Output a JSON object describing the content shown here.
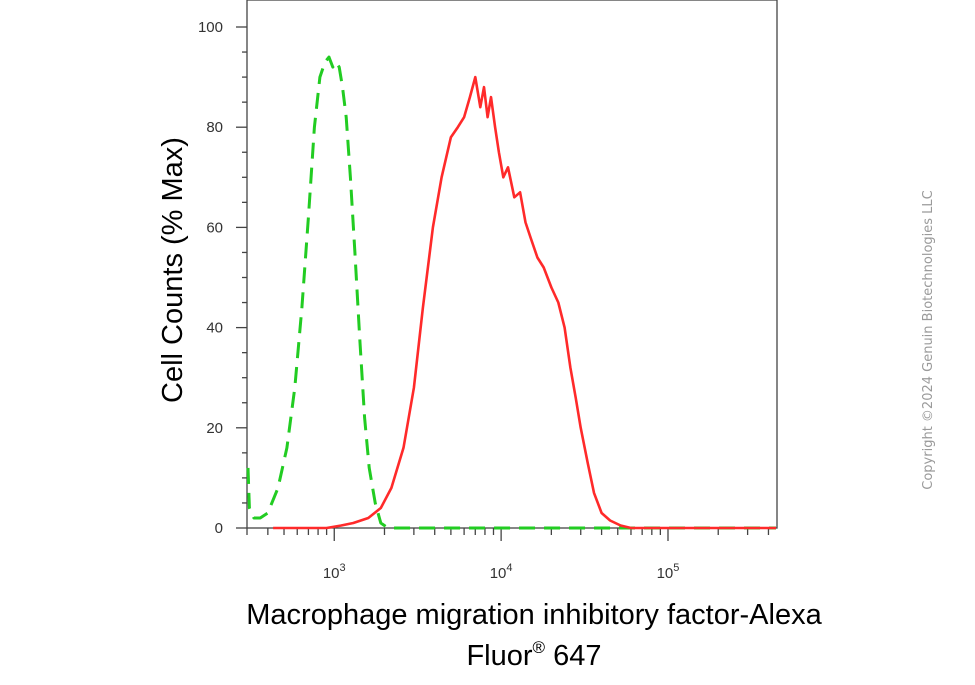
{
  "chart_data": {
    "type": "line",
    "title": "",
    "xlabel_line1": "Macrophage migration inhibitory factor-Alexa",
    "xlabel_line2": "Fluor",
    "xlabel_sup": "®",
    "xlabel_line2_tail": " 647",
    "ylabel": "Cell Counts (% Max)",
    "x_scale": "log",
    "xlim": [
      300,
      450000
    ],
    "ylim": [
      0,
      100
    ],
    "y_ticks": [
      0,
      20,
      40,
      60,
      80,
      100
    ],
    "x_major_ticks": [
      {
        "value": 1000,
        "base": "10",
        "exp": "3"
      },
      {
        "value": 10000,
        "base": "10",
        "exp": "4"
      },
      {
        "value": 100000,
        "base": "10",
        "exp": "5"
      }
    ],
    "grid": false,
    "legend": "none",
    "series": [
      {
        "style": "dashed",
        "color": "#22cc22",
        "x": [
          300,
          310,
          330,
          360,
          400,
          460,
          520,
          580,
          640,
          700,
          760,
          820,
          880,
          930,
          980,
          1020,
          1070,
          1120,
          1180,
          1250,
          1330,
          1420,
          1520,
          1620,
          1760,
          1900,
          2100,
          3000,
          10000,
          100000,
          450000
        ],
        "y": [
          12,
          4,
          2,
          2,
          3,
          8,
          16,
          28,
          44,
          62,
          80,
          90,
          93,
          94,
          92,
          93,
          92,
          88,
          82,
          70,
          55,
          38,
          22,
          12,
          5,
          1,
          0,
          0,
          0,
          0,
          0
        ]
      },
      {
        "style": "solid",
        "color": "#ff2a2a",
        "x": [
          430,
          900,
          1100,
          1300,
          1600,
          1900,
          2200,
          2600,
          3000,
          3400,
          3900,
          4400,
          5000,
          5500,
          6000,
          6500,
          7000,
          7500,
          7900,
          8300,
          8700,
          9200,
          9700,
          10300,
          11000,
          12000,
          13000,
          14000,
          15000,
          16500,
          18000,
          20000,
          22000,
          24000,
          26000,
          28000,
          30000,
          33000,
          36000,
          40000,
          45000,
          52000,
          60000,
          70000,
          80000,
          450000
        ],
        "y": [
          0,
          0,
          0.5,
          1,
          2,
          4,
          8,
          16,
          28,
          44,
          60,
          70,
          78,
          80,
          82,
          86,
          90,
          84,
          88,
          82,
          86,
          80,
          75,
          70,
          72,
          66,
          67,
          61,
          58,
          54,
          52,
          48,
          45,
          40,
          32,
          26,
          20,
          13,
          7,
          3,
          1.5,
          0.5,
          0,
          0,
          0,
          0
        ]
      }
    ]
  },
  "watermark": "Copyright ©2024 Genuin Biotechnologies LLC"
}
